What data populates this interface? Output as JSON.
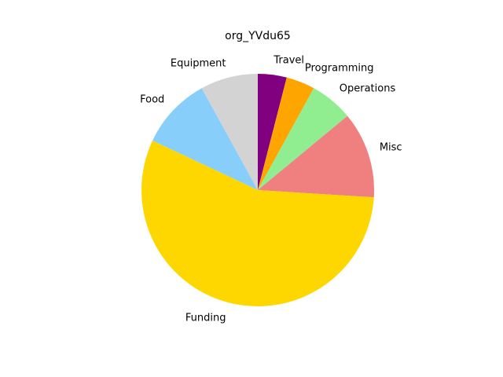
{
  "chart_data": {
    "type": "pie",
    "title": "org_YVdu65",
    "start_angle_deg": 90,
    "direction": "clockwise",
    "slices": [
      {
        "label": "Travel",
        "value": 4,
        "color": "#800080"
      },
      {
        "label": "Programming",
        "value": 4,
        "color": "#FFA500"
      },
      {
        "label": "Operations",
        "value": 6,
        "color": "#90EE90"
      },
      {
        "label": "Misc",
        "value": 12,
        "color": "#F08080"
      },
      {
        "label": "Funding",
        "value": 56,
        "color": "#FFD700"
      },
      {
        "label": "Food",
        "value": 10,
        "color": "#87CEFA"
      },
      {
        "label": "Equipment",
        "value": 8,
        "color": "#D3D3D3"
      }
    ]
  }
}
